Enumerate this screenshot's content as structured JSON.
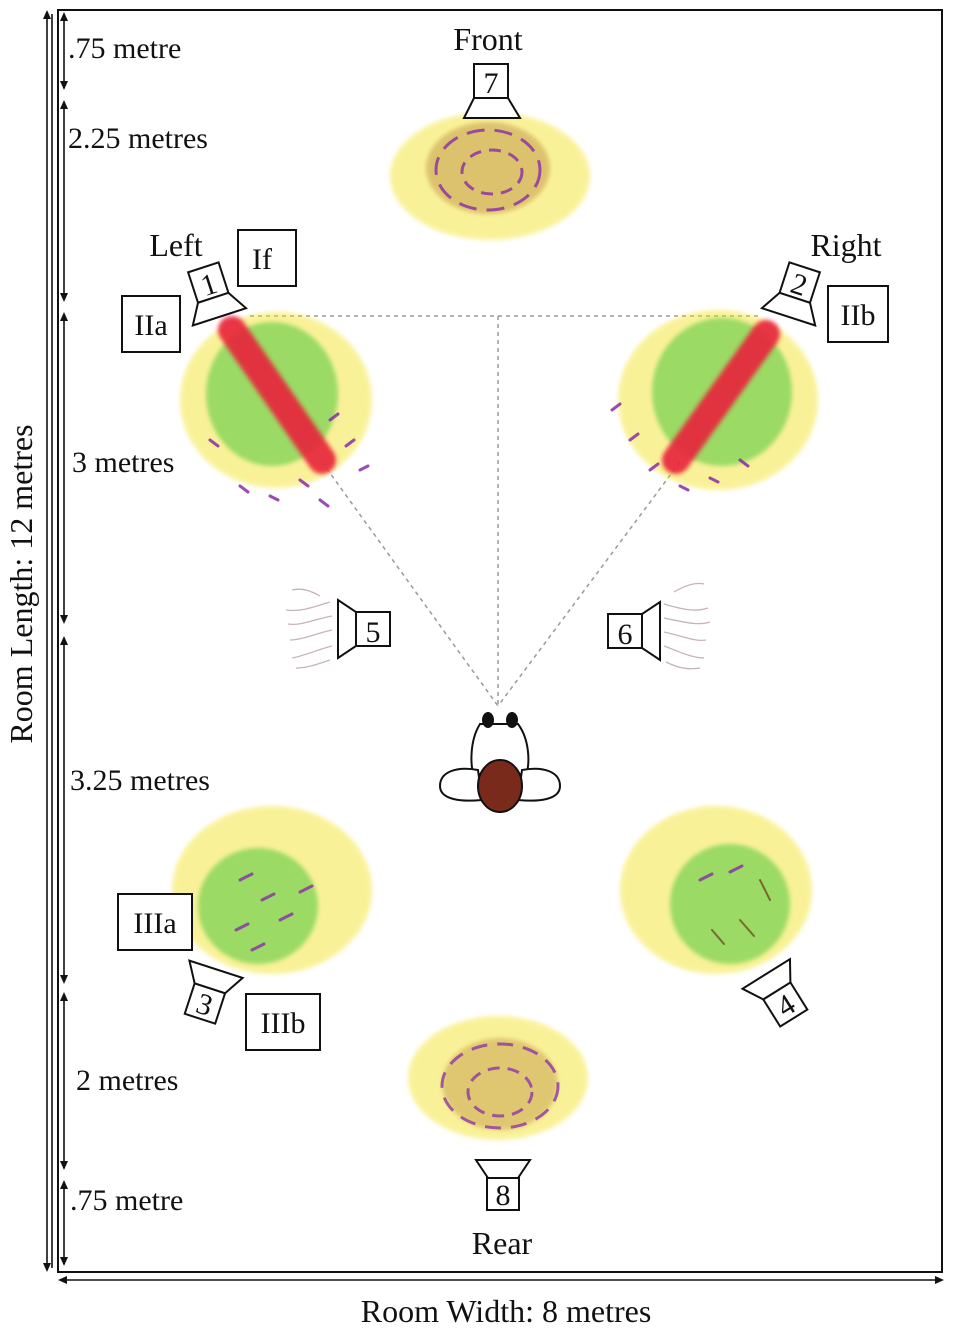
{
  "room": {
    "length_label": "Room Length: 12  metres",
    "width_label": "Room Width: 8 metres"
  },
  "sides": {
    "front": "Front",
    "left": "Left",
    "right": "Right",
    "rear": "Rear"
  },
  "segments": [
    ".75 metre",
    "2.25 metres",
    "3 metres",
    "3.25 metres",
    "2 metres",
    ".75 metre"
  ],
  "speakers": {
    "s1": "1",
    "s2": "2",
    "s3": "3",
    "s4": "4",
    "s5": "5",
    "s6": "6",
    "s7": "7",
    "s8": "8"
  },
  "zones": {
    "If": "If",
    "IIa": "IIa",
    "IIb": "IIb",
    "IIIa": "IIIa",
    "IIIb": "IIIb"
  },
  "colors": {
    "yellow": "#f2e21c",
    "green": "#4fc83a",
    "red": "#e8203a",
    "purple": "#8a2ca8",
    "brown": "#6a3a1c",
    "head": "#7a2a1a"
  }
}
